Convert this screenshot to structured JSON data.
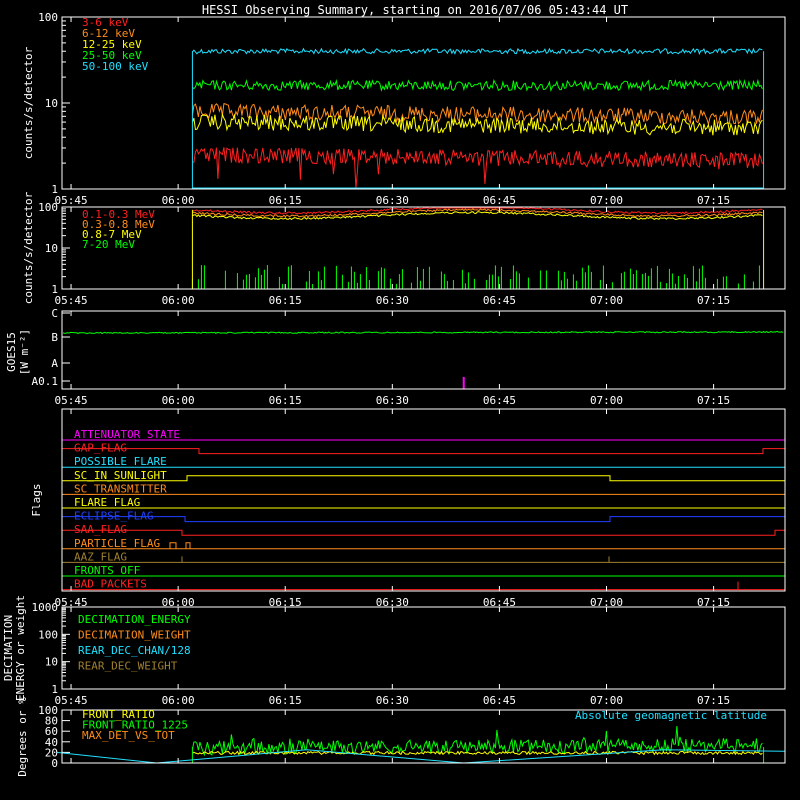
{
  "title": "HESSI Observing Summary, starting on 2016/07/06 05:43:44 UT",
  "time_ticks": [
    "05:45",
    "06:00",
    "06:15",
    "06:30",
    "06:45",
    "07:00",
    "07:15"
  ],
  "chart_data": [
    {
      "type": "line",
      "name": "count-rates",
      "ylabel": "counts/s/detector",
      "yscale": "log",
      "ylim": [
        1,
        100
      ],
      "yticks": [
        "1",
        "10",
        "100"
      ],
      "legend": [
        {
          "label": "3-6 keV",
          "color": "#ff2020"
        },
        {
          "label": "6-12 keV",
          "color": "#ff8c1a"
        },
        {
          "label": "12-25 keV",
          "color": "#ffff00"
        },
        {
          "label": "25-50 keV",
          "color": "#00ff00"
        },
        {
          "label": "50-100 keV",
          "color": "#20e0ff"
        }
      ],
      "data_start": "06:02",
      "data_end": "07:22",
      "series": [
        {
          "name": "50-100 keV",
          "color": "#20e0ff",
          "approx_level": 40
        },
        {
          "name": "25-50 keV",
          "color": "#00ff00",
          "approx_level": 16
        },
        {
          "name": "6-12 keV",
          "color": "#ff8c1a",
          "approx_level": 8
        },
        {
          "name": "12-25 keV",
          "color": "#ffff00",
          "approx_level": 6
        },
        {
          "name": "3-6 keV",
          "color": "#ff2020",
          "approx_level": 2.5
        }
      ]
    },
    {
      "type": "line",
      "name": "gamma-rates",
      "ylabel": "counts/s/detector",
      "yscale": "log",
      "ylim": [
        1,
        100
      ],
      "yticks": [
        "1",
        "10",
        "100"
      ],
      "legend": [
        {
          "label": "0.1-0.3 MeV",
          "color": "#ff2020"
        },
        {
          "label": "0.3-0.8 MeV",
          "color": "#ff8c1a"
        },
        {
          "label": "0.8-7 MeV",
          "color": "#ffff00"
        },
        {
          "label": "7-20 MeV",
          "color": "#00ff00"
        }
      ],
      "data_start": "06:02",
      "data_end": "07:22",
      "series": [
        {
          "name": "0.1-0.3 MeV",
          "color": "#ff2020",
          "approx_level": 85
        },
        {
          "name": "0.3-0.8 MeV",
          "color": "#ff8c1a",
          "approx_level": 72
        },
        {
          "name": "0.8-7 MeV",
          "color": "#ffff00",
          "approx_level": 62
        },
        {
          "name": "7-20 MeV",
          "color": "#00ff00",
          "approx_level": 2
        }
      ]
    },
    {
      "type": "line",
      "name": "goes",
      "ylabel": "GOES15",
      "ylabel2": "[W m⁻²]",
      "yticks": [
        "A0.1",
        "A",
        "B",
        "C"
      ],
      "series": [
        {
          "name": "GOES flux",
          "color": "#00ff00",
          "approx_level": "B"
        }
      ],
      "marker": {
        "time": "06:40",
        "color": "#ff00ff"
      }
    },
    {
      "type": "timeline",
      "name": "flags",
      "ylabel": "Flags",
      "flags": [
        {
          "label": "ATTENUATOR_STATE",
          "color": "#ff00ff"
        },
        {
          "label": "GAP_FLAG",
          "color": "#ff2020"
        },
        {
          "label": "POSSIBLE_FLARE",
          "color": "#20e0ff"
        },
        {
          "label": "SC_IN_SUNLIGHT",
          "color": "#ffff00"
        },
        {
          "label": "SC_TRANSMITTER",
          "color": "#ff8c1a"
        },
        {
          "label": "FLARE_FLAG",
          "color": "#ffff00"
        },
        {
          "label": "ECLIPSE_FLAG",
          "color": "#2040ff"
        },
        {
          "label": "SAA_FLAG",
          "color": "#ff2020"
        },
        {
          "label": "PARTICLE_FLAG",
          "color": "#ff8c1a"
        },
        {
          "label": "AAZ_FLAG",
          "color": "#a08030"
        },
        {
          "label": "FRONTS_OFF",
          "color": "#00ff00"
        },
        {
          "label": "BAD_PACKETS",
          "color": "#ff2020"
        }
      ]
    },
    {
      "type": "line",
      "name": "decimation",
      "ylabel": "DECIMATION",
      "ylabel2": "ENERGY or weight",
      "yscale": "log",
      "ylim": [
        1,
        1000
      ],
      "yticks": [
        "1",
        "10",
        "100",
        "1000"
      ],
      "legend": [
        {
          "label": "DECIMATION_ENERGY",
          "color": "#00ff00"
        },
        {
          "label": "DECIMATION_WEIGHT",
          "color": "#ff8c1a"
        },
        {
          "label": "REAR_DEC_CHAN/128",
          "color": "#20e0ff"
        },
        {
          "label": "REAR_DEC_WEIGHT",
          "color": "#a08030"
        }
      ]
    },
    {
      "type": "line",
      "name": "ratios",
      "ylabel": "Degrees or %",
      "ylim": [
        0,
        100
      ],
      "yticks": [
        "0",
        "20",
        "40",
        "60",
        "80",
        "100"
      ],
      "legend": [
        {
          "label": "FRONT_RATIO",
          "color": "#ffff00"
        },
        {
          "label": "FRONT_RATIO_1225",
          "color": "#00ff00"
        },
        {
          "label": "MAX_DET_VS_TOT",
          "color": "#ff8c1a"
        }
      ],
      "annotation": {
        "label": "Absolute geomagnetic latitude",
        "color": "#20e0ff"
      },
      "series": [
        {
          "name": "FRONT_RATIO_1225",
          "color": "#00ff00",
          "approx_level": 30
        },
        {
          "name": "FRONT_RATIO",
          "color": "#ffff00",
          "approx_level": 20
        },
        {
          "name": "Absolute geomagnetic latitude",
          "color": "#20e0ff",
          "min_times": [
            "05:57",
            "06:40"
          ],
          "max_times": [
            "06:18",
            "07:08"
          ]
        }
      ]
    }
  ]
}
